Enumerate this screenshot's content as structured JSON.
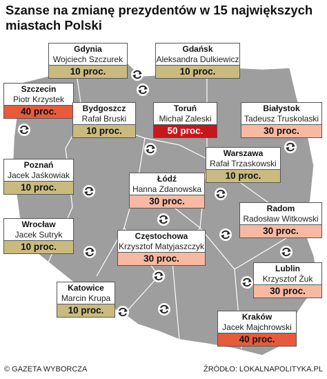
{
  "header": {
    "title": "Szanse na zmianę prezydentów w 15 największych miastach Polski"
  },
  "cities": [
    {
      "city": "Gdynia",
      "person": "Wojciech Szczurek",
      "chance": "10 proc.",
      "color": "#c9bb80"
    },
    {
      "city": "Gdańsk",
      "person": "Aleksandra Dulkiewicz",
      "chance": "10 proc.",
      "color": "#c9bb80"
    },
    {
      "city": "Szczecin",
      "person": "Piotr Krzystek",
      "chance": "40 proc.",
      "color": "#e75a3c"
    },
    {
      "city": "Bydgoszcz",
      "person": "Rafał Bruski",
      "chance": "10 proc.",
      "color": "#c9bb80"
    },
    {
      "city": "Toruń",
      "person": "Michał Zaleski",
      "chance": "50 proc.",
      "color": "#c8161d"
    },
    {
      "city": "Białystok",
      "person": "Tadeusz Truskolaski",
      "chance": "30 proc.",
      "color": "#f7b9a2"
    },
    {
      "city": "Poznań",
      "person": "Jacek Jaśkowiak",
      "chance": "10 proc.",
      "color": "#c9bb80"
    },
    {
      "city": "Warszawa",
      "person": "Rafał Trzaskowski",
      "chance": "10 proc.",
      "color": "#c9bb80"
    },
    {
      "city": "Łódź",
      "person": "Hanna Zdanowska",
      "chance": "30 proc.",
      "color": "#f7b9a2"
    },
    {
      "city": "Radom",
      "person": "Radosław Witkowski",
      "chance": "30 proc.",
      "color": "#f7b9a2"
    },
    {
      "city": "Wrocław",
      "person": "Jacek Sutryk",
      "chance": "10 proc.",
      "color": "#c9bb80"
    },
    {
      "city": "Częstochowa",
      "person": "Krzysztof Matyjaszczyk",
      "chance": "30 proc.",
      "color": "#f7b9a2"
    },
    {
      "city": "Lublin",
      "person": "Krzysztof Żuk",
      "chance": "30 proc.",
      "color": "#f7b9a2"
    },
    {
      "city": "Katowice",
      "person": "Marcin Krupa",
      "chance": "10 proc.",
      "color": "#c9bb80"
    },
    {
      "city": "Kraków",
      "person": "Jacek Majchrowski",
      "chance": "40 proc.",
      "color": "#e75a3c"
    }
  ],
  "footer": {
    "credit": "© GAZETA WYBORCZA",
    "source": "ŹRÓDŁO: LOKALNAPOLITYKA.PL"
  }
}
